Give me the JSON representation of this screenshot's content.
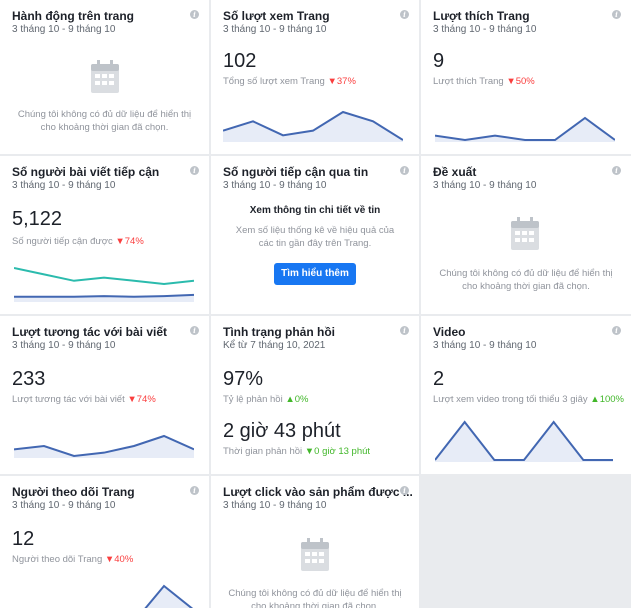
{
  "colors": {
    "line_blue": "#4267b2",
    "fill_blue": "#e7ecf7",
    "line_teal": "#2bbbad",
    "down": "#fa3e3e",
    "up": "#42b72a",
    "button": "#1877f2"
  },
  "info_icon": "i",
  "cards": {
    "actions": {
      "title": "Hành động trên trang",
      "date": "3 tháng 10 - 9 tháng 10",
      "nodata": [
        "Chúng tôi không có đủ dữ liệu để hiển thị",
        "cho khoảng thời gian đã chọn."
      ]
    },
    "views": {
      "title": "Số lượt xem Trang",
      "date": "3 tháng 10 - 9 tháng 10",
      "value": "102",
      "label": "Tổng số lượt xem Trang",
      "change": "▼37%"
    },
    "likes": {
      "title": "Lượt thích Trang",
      "date": "3 tháng 10 - 9 tháng 10",
      "value": "9",
      "label": "Lượt thích Trang",
      "change": "▼50%"
    },
    "reach": {
      "title": "Số người bài viết tiếp cận",
      "date": "3 tháng 10 - 9 tháng 10",
      "value": "5,122",
      "label": "Số người tiếp cận được",
      "change": "▼74%"
    },
    "messages": {
      "title": "Số người tiếp cận qua tin",
      "date": "3 tháng 10 - 9 tháng 10",
      "heading": "Xem thông tin chi tiết về tin",
      "desc": [
        "Xem số liệu thống kê về hiệu quả của",
        "các tin gần đây trên Trang."
      ],
      "button": "Tìm hiểu thêm"
    },
    "recommend": {
      "title": "Đề xuất",
      "date": "3 tháng 10 - 9 tháng 10",
      "nodata": [
        "Chúng tôi không có đủ dữ liệu để hiển thị",
        "cho khoảng thời gian đã chọn."
      ]
    },
    "engagement": {
      "title": "Lượt tương tác với bài viết",
      "date": "3 tháng 10 - 9 tháng 10",
      "value": "233",
      "label": "Lượt tương tác với bài viết",
      "change": "▼74%"
    },
    "response": {
      "title": "Tình trạng phản hồi",
      "date": "Kể từ 7 tháng 10, 2021",
      "value": "97%",
      "label": "Tỷ lệ phản hồi",
      "change": "▲0%",
      "value2": "2 giờ 43 phút",
      "label2": "Thời gian phản hồi",
      "change2": "▼0 giờ 13 phút"
    },
    "video": {
      "title": "Video",
      "date": "3 tháng 10 - 9 tháng 10",
      "value": "2",
      "label": "Lượt xem video trong tối thiểu 3 giây",
      "change": "▲100%"
    },
    "followers": {
      "title": "Người theo dõi Trang",
      "date": "3 tháng 10 - 9 tháng 10",
      "value": "12",
      "label": "Người theo dõi Trang",
      "change": "▼40%"
    },
    "clicks": {
      "title": "Lượt click vào sản phẩm được ...",
      "date": "3 tháng 10 - 9 tháng 10",
      "nodata": [
        "Chúng tôi không có đủ dữ liệu để hiển thị",
        "cho khoảng thời gian đã chọn."
      ]
    }
  },
  "chart_data": [
    {
      "type": "area",
      "name": "views",
      "values": [
        3,
        5,
        2,
        3,
        7,
        5,
        1
      ]
    },
    {
      "type": "area",
      "name": "likes",
      "values": [
        2,
        1,
        2,
        1,
        1,
        6,
        1
      ]
    },
    {
      "type": "line",
      "name": "reach",
      "series": [
        {
          "values": [
            10,
            8,
            6,
            7,
            6,
            5,
            6
          ]
        },
        {
          "values": [
            1,
            1,
            1,
            1.2,
            1,
            1.2,
            1.6
          ]
        }
      ]
    },
    {
      "type": "area",
      "name": "engagement",
      "values": [
        4,
        5,
        2,
        3,
        5,
        8,
        4
      ]
    },
    {
      "type": "area",
      "name": "video",
      "values": [
        0,
        1,
        0,
        0,
        1,
        0,
        0
      ]
    },
    {
      "type": "area",
      "name": "followers",
      "values": [
        0,
        0,
        0,
        0,
        0,
        3,
        1
      ]
    }
  ]
}
